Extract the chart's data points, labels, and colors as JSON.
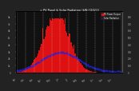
{
  "title": "= PV Panel & Solar Radiation (kW) [2021]",
  "legend_pv": "PV Power Output",
  "legend_solar": "Solar Radiation",
  "bg_color": "#222222",
  "plot_bg": "#111111",
  "bar_color": "#dd1111",
  "dot_color": "#2222dd",
  "grid_color": "#ffffff",
  "title_color": "#ffffff",
  "tick_color": "#aaaaaa",
  "n_bars": 120,
  "peak_index": 45,
  "peak_value": 1.0,
  "ylim": [
    0,
    1.0
  ],
  "ylabel_right_ticks": [
    "0",
    "100",
    "200",
    "300",
    "400",
    "500",
    "600",
    "700",
    "800"
  ],
  "ylabel_left_ticks": [
    "0",
    "1k",
    "2k",
    "3k",
    "4k",
    "5k",
    "6k",
    "7k",
    "8k"
  ],
  "xlabel_ticks": [
    "Jan",
    "Feb",
    "Mar",
    "Apr",
    "May",
    "Jun",
    "Jul",
    "Aug",
    "Sep",
    "Oct",
    "Nov",
    "Dec"
  ]
}
